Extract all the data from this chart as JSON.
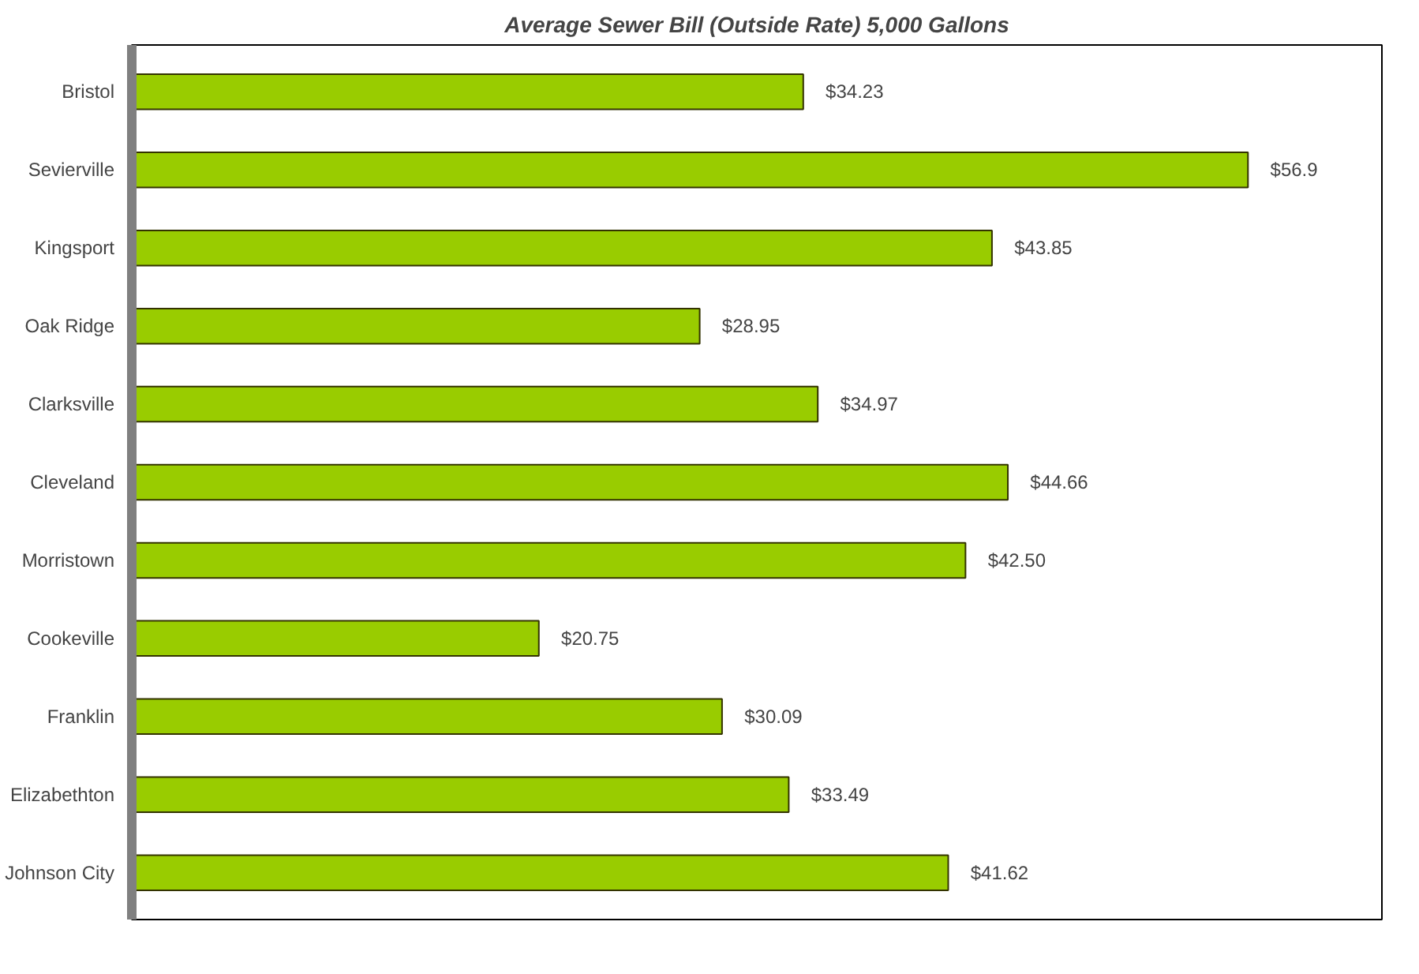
{
  "chart_data": {
    "type": "bar",
    "orientation": "horizontal",
    "title": "Average Sewer Bill (Outside Rate) 5,000 Gallons",
    "categories": [
      "Bristol",
      "Sevierville",
      "Kingsport",
      "Oak Ridge",
      "Clarksville",
      "Cleveland",
      "Morristown",
      "Cookeville",
      "Franklin",
      "Elizabethton",
      "Johnson City"
    ],
    "values": [
      34.23,
      56.9,
      43.85,
      28.95,
      34.97,
      44.66,
      42.5,
      20.75,
      30.09,
      33.49,
      41.62
    ],
    "value_labels": [
      "$34.23",
      "$56.9",
      "$43.85",
      "$28.95",
      "$34.97",
      "$44.66",
      "$42.50",
      "$20.75",
      "$30.09",
      "$33.49",
      "$41.62"
    ],
    "color": "#99cc00"
  }
}
